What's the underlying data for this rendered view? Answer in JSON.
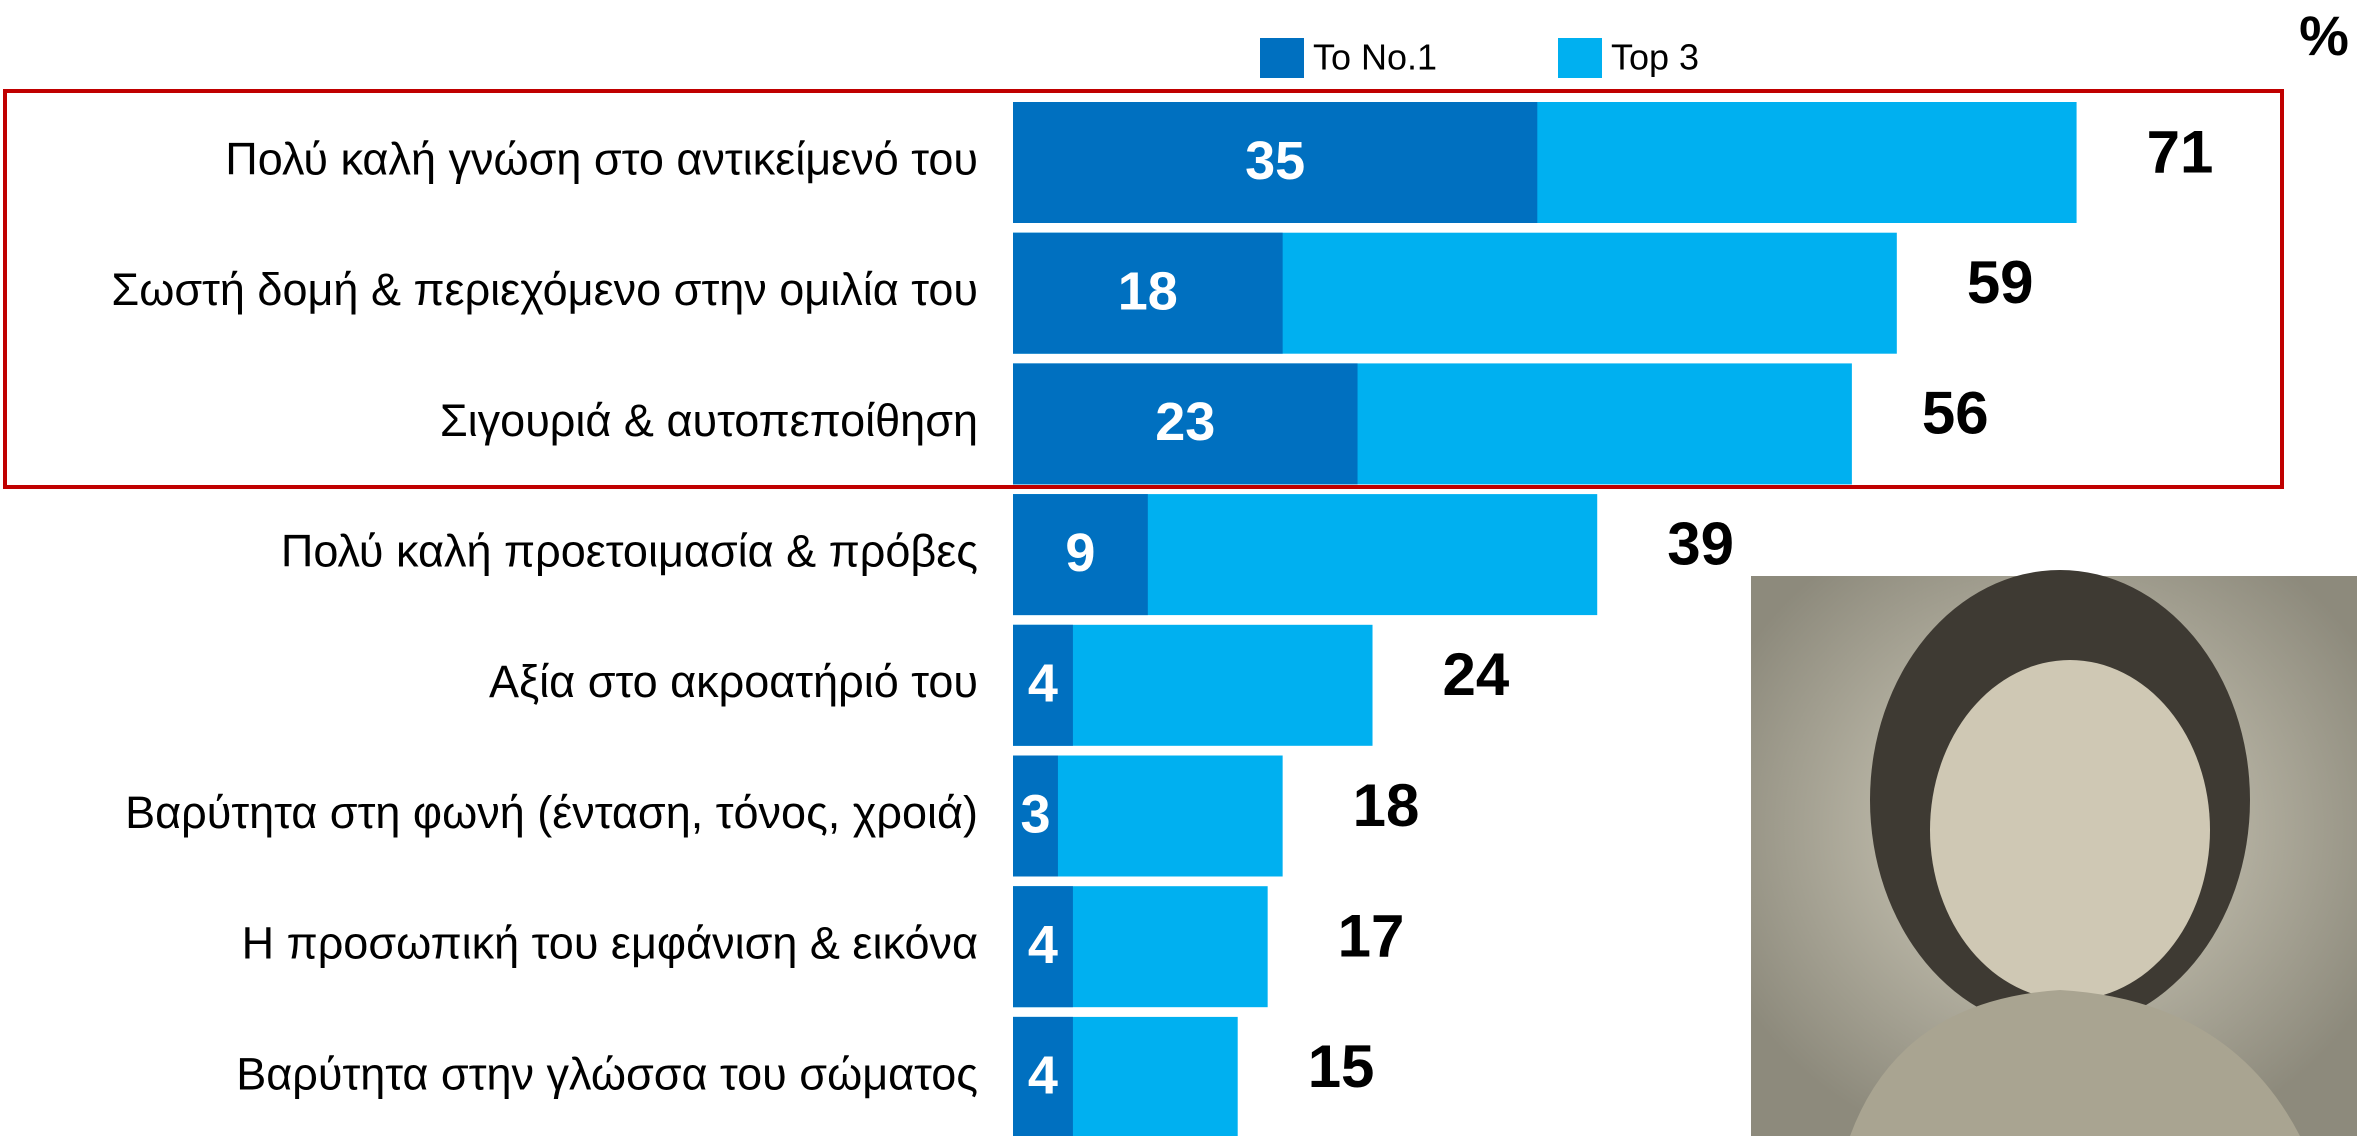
{
  "chart_data": {
    "type": "bar",
    "orientation": "horizontal",
    "unit_label": "%",
    "categories": [
      "Πολύ καλή γνώση στο αντικείμενό του",
      "Σωστή δομή & περιεχόμενο στην ομιλία του",
      "Σιγουριά &  αυτοπεποίθηση",
      "Πολύ καλή προετοιμασία &  πρόβες",
      "Αξία στο ακροατήριό του",
      "Βαρύτητα στη φωνή (ένταση, τόνος, χροιά)",
      "Η προσωπική του εμφάνιση & εικόνα",
      "Βαρύτητα στην γλώσσα του σώματος"
    ],
    "series": [
      {
        "name": "To No.1",
        "color": "#0070c0",
        "values": [
          35,
          18,
          23,
          9,
          4,
          3,
          4,
          4
        ]
      },
      {
        "name": "Top 3",
        "color": "#00b0f0",
        "values": [
          71,
          59,
          56,
          39,
          24,
          18,
          17,
          15
        ]
      }
    ],
    "legend": "top"
  }
}
